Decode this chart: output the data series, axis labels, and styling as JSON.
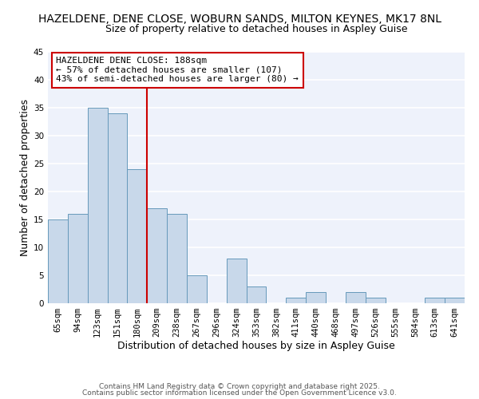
{
  "title": "HAZELDENE, DENE CLOSE, WOBURN SANDS, MILTON KEYNES, MK17 8NL",
  "subtitle": "Size of property relative to detached houses in Aspley Guise",
  "xlabel": "Distribution of detached houses by size in Aspley Guise",
  "ylabel": "Number of detached properties",
  "bar_color": "#c8d8ea",
  "bar_edge_color": "#6699bb",
  "background_color": "#eef2fb",
  "grid_color": "#ffffff",
  "categories": [
    "65sqm",
    "94sqm",
    "123sqm",
    "151sqm",
    "180sqm",
    "209sqm",
    "238sqm",
    "267sqm",
    "296sqm",
    "324sqm",
    "353sqm",
    "382sqm",
    "411sqm",
    "440sqm",
    "468sqm",
    "497sqm",
    "526sqm",
    "555sqm",
    "584sqm",
    "613sqm",
    "641sqm"
  ],
  "values": [
    15,
    16,
    35,
    34,
    24,
    17,
    16,
    5,
    0,
    8,
    3,
    0,
    1,
    2,
    0,
    2,
    1,
    0,
    0,
    1,
    1
  ],
  "ylim": [
    0,
    45
  ],
  "yticks": [
    0,
    5,
    10,
    15,
    20,
    25,
    30,
    35,
    40,
    45
  ],
  "vline_x": 4.5,
  "vline_color": "#cc0000",
  "annotation_title": "HAZELDENE DENE CLOSE: 188sqm",
  "annotation_line1": "← 57% of detached houses are smaller (107)",
  "annotation_line2": "43% of semi-detached houses are larger (80) →",
  "footer_line1": "Contains HM Land Registry data © Crown copyright and database right 2025.",
  "footer_line2": "Contains public sector information licensed under the Open Government Licence v3.0.",
  "title_fontsize": 10,
  "subtitle_fontsize": 9,
  "axis_label_fontsize": 9,
  "tick_fontsize": 7.5,
  "annotation_fontsize": 8,
  "footer_fontsize": 6.5
}
